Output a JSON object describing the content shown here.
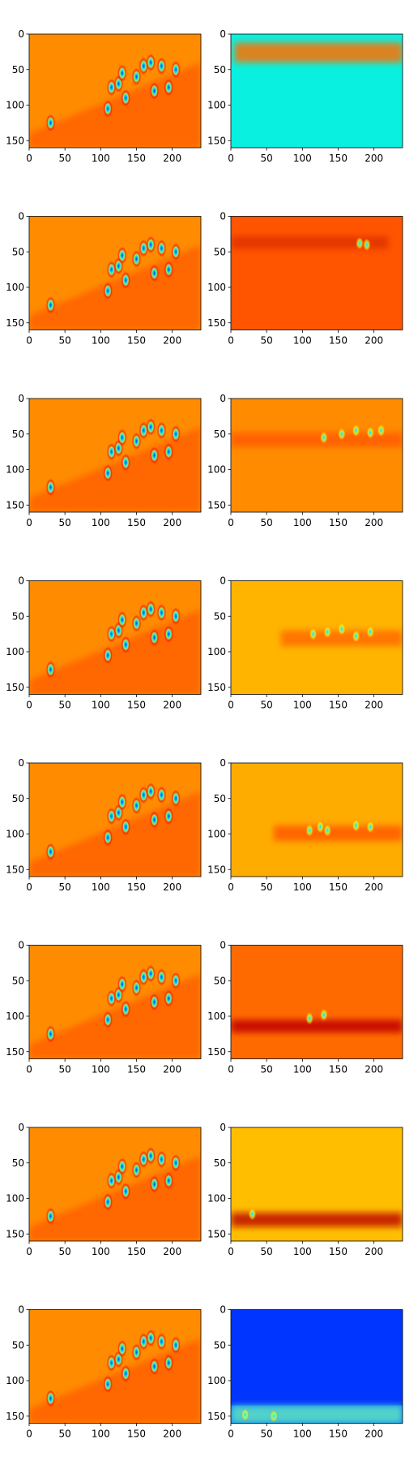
{
  "figure": {
    "layout": "8 rows x 2 columns of heatmap panels",
    "colormap": "jet",
    "colormap_stops": [
      "#00007f",
      "#0000ff",
      "#007fff",
      "#00ffff",
      "#7fff7f",
      "#ffff00",
      "#ff7f00",
      "#ff0000",
      "#7f0000"
    ]
  },
  "chart_data": {
    "type": "heatmap",
    "panel_axes": {
      "x_range": [
        0,
        240
      ],
      "y_range": [
        160,
        0
      ],
      "y_inverted": true,
      "x_ticks": [
        0,
        50,
        100,
        150,
        200
      ],
      "y_ticks": [
        0,
        50,
        100,
        150
      ],
      "x_tick_labels": [
        "0",
        "50",
        "100",
        "150",
        "200"
      ],
      "y_tick_labels": [
        "0",
        "50",
        "100",
        "150"
      ],
      "grid": false
    },
    "left_column": {
      "description": "full activation map repeated in each row",
      "base_color": "#ff8c00",
      "band_color": "#ff4a00",
      "band_start": [
        0,
        140
      ],
      "band_end": [
        240,
        40
      ],
      "hotspots": [
        [
          115,
          75
        ],
        [
          125,
          70
        ],
        [
          130,
          55
        ],
        [
          150,
          60
        ],
        [
          160,
          45
        ],
        [
          170,
          40
        ],
        [
          185,
          45
        ],
        [
          175,
          80
        ],
        [
          195,
          75
        ],
        [
          110,
          105
        ],
        [
          135,
          90
        ],
        [
          205,
          50
        ],
        [
          30,
          125
        ]
      ]
    },
    "panels": [
      {
        "row": 1,
        "col": 1,
        "kind": "left"
      },
      {
        "row": 1,
        "col": 2,
        "kind": "right",
        "background": "#0af0e0",
        "band_y": 12,
        "band_h": 28,
        "band_color": "#ff7000",
        "band_x": [
          5,
          240
        ],
        "fill_from_band": false
      },
      {
        "row": 2,
        "col": 1,
        "kind": "left"
      },
      {
        "row": 2,
        "col": 2,
        "kind": "right",
        "background": "#ff5500",
        "band_y": 28,
        "band_h": 18,
        "band_color": "#e03000",
        "band_x": [
          0,
          220
        ],
        "hotspots": [
          [
            180,
            38
          ],
          [
            190,
            40
          ]
        ]
      },
      {
        "row": 3,
        "col": 1,
        "kind": "left"
      },
      {
        "row": 3,
        "col": 2,
        "kind": "right",
        "background": "#ff8c00",
        "band_y": 48,
        "band_h": 20,
        "band_color": "#ff5a00",
        "band_x": [
          0,
          240
        ],
        "hotspots": [
          [
            130,
            55
          ],
          [
            155,
            50
          ],
          [
            175,
            45
          ],
          [
            195,
            48
          ],
          [
            210,
            45
          ]
        ]
      },
      {
        "row": 4,
        "col": 1,
        "kind": "left"
      },
      {
        "row": 4,
        "col": 2,
        "kind": "right",
        "background": "#ffb400",
        "band_y": 70,
        "band_h": 22,
        "band_color": "#ff6a00",
        "band_x": [
          70,
          240
        ],
        "hotspots": [
          [
            115,
            75
          ],
          [
            135,
            72
          ],
          [
            155,
            68
          ],
          [
            175,
            78
          ],
          [
            195,
            72
          ]
        ]
      },
      {
        "row": 5,
        "col": 1,
        "kind": "left"
      },
      {
        "row": 5,
        "col": 2,
        "kind": "right",
        "background": "#ffac00",
        "band_y": 88,
        "band_h": 22,
        "band_color": "#ff5a00",
        "band_x": [
          60,
          240
        ],
        "hotspots": [
          [
            110,
            95
          ],
          [
            125,
            90
          ],
          [
            135,
            95
          ],
          [
            175,
            88
          ],
          [
            195,
            90
          ]
        ]
      },
      {
        "row": 6,
        "col": 1,
        "kind": "left"
      },
      {
        "row": 6,
        "col": 2,
        "kind": "right",
        "background": "#ff6a00",
        "band_y": 105,
        "band_h": 18,
        "band_color": "#c00000",
        "band_x": [
          0,
          240
        ],
        "hotspots": [
          [
            110,
            103
          ],
          [
            130,
            98
          ]
        ]
      },
      {
        "row": 7,
        "col": 1,
        "kind": "left"
      },
      {
        "row": 7,
        "col": 2,
        "kind": "right",
        "background": "#ffbf00",
        "band_y": 120,
        "band_h": 20,
        "band_color": "#c01000",
        "band_x": [
          0,
          240
        ],
        "hotspots": [
          [
            30,
            122
          ]
        ]
      },
      {
        "row": 8,
        "col": 1,
        "kind": "left"
      },
      {
        "row": 8,
        "col": 2,
        "kind": "right",
        "background": "#0035ff",
        "band_y": 135,
        "band_h": 25,
        "band_color": "#60e0c0",
        "band_x": [
          0,
          240
        ],
        "fill_from_band": true,
        "hotspots": [
          [
            20,
            148
          ],
          [
            60,
            150
          ]
        ]
      }
    ]
  }
}
